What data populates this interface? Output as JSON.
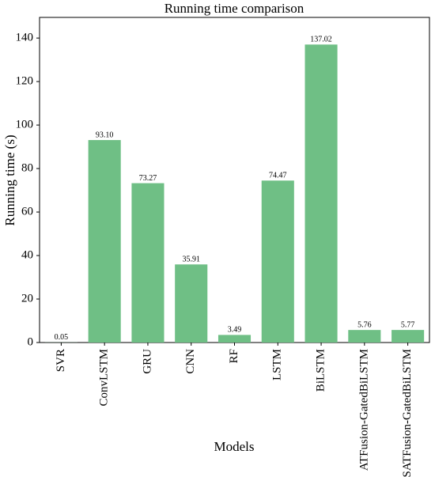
{
  "chart_data": {
    "type": "bar",
    "title": "Running time comparison",
    "x_label": "Models",
    "y_label": "Running time (s)",
    "categories": [
      "SVR",
      "ConvLSTM",
      "GRU",
      "CNN",
      "RF",
      "LSTM",
      "BiLSTM",
      "ATFusion-GatedBiLSTM",
      "SATFusion-GatedBiLSTM"
    ],
    "values": [
      0.05,
      93.1,
      73.27,
      35.91,
      3.49,
      74.47,
      137.02,
      5.76,
      5.77
    ],
    "value_labels": [
      "0.05",
      "93.10",
      "73.27",
      "35.91",
      "3.49",
      "74.47",
      "137.02",
      "5.76",
      "5.77"
    ],
    "color": "#6fbf85",
    "ylim": [
      0,
      149.5
    ],
    "yticks": [
      0,
      20,
      40,
      60,
      80,
      100,
      120,
      140
    ],
    "grid": false
  }
}
